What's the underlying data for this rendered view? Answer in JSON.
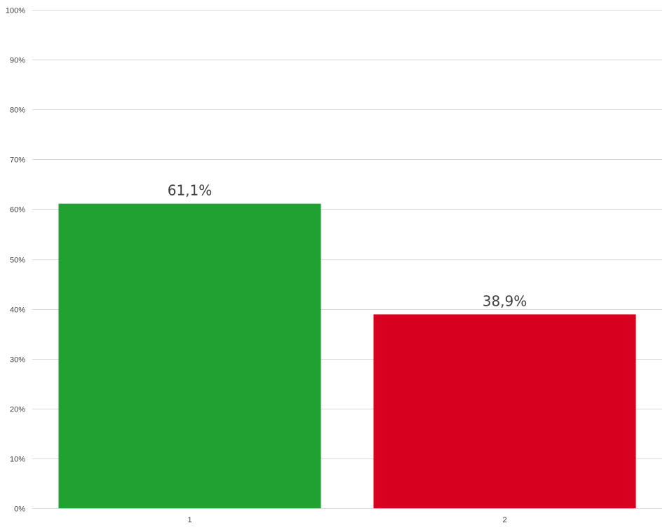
{
  "chart_data": {
    "type": "bar",
    "title": "",
    "xlabel": "",
    "ylabel": "",
    "categories": [
      "1",
      "2"
    ],
    "values": [
      61.1,
      38.9
    ],
    "data_labels": [
      "61,1%",
      "38,9%"
    ],
    "bar_colors": [
      "#21a131",
      "#d7001f"
    ],
    "ylim": [
      0,
      100
    ],
    "y_ticks": [
      0,
      10,
      20,
      30,
      40,
      50,
      60,
      70,
      80,
      90,
      100
    ],
    "y_tick_labels": [
      "0%",
      "10%",
      "20%",
      "30%",
      "40%",
      "50%",
      "60%",
      "70%",
      "80%",
      "90%",
      "100%"
    ],
    "grid": true,
    "legend": "none"
  }
}
